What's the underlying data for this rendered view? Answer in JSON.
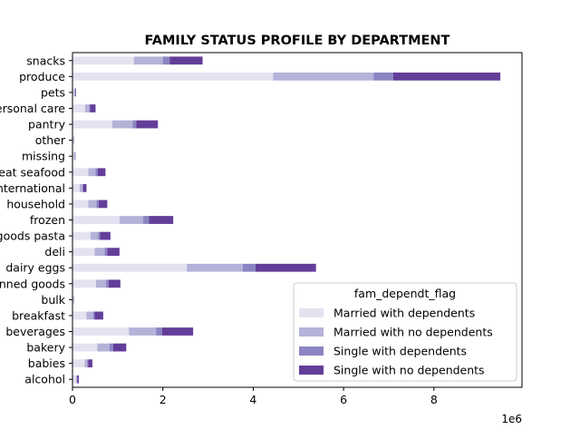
{
  "chart_data": {
    "type": "bar",
    "orientation": "horizontal",
    "stacked": true,
    "title": "FAMILY STATUS PROFILE BY DEPARTMENT",
    "xlabel": "",
    "ylabel": "",
    "x_offset_label": "1e6",
    "xlim": [
      0,
      9950000
    ],
    "x_ticks": [
      0,
      2000000,
      4000000,
      6000000,
      8000000
    ],
    "x_tick_labels": [
      "0",
      "2",
      "4",
      "6",
      "8"
    ],
    "grid": false,
    "legend": {
      "title": "fam_dependt_flag",
      "placement": "lower-right"
    },
    "categories": [
      "alcohol",
      "babies",
      "bakery",
      "beverages",
      "breakfast",
      "bulk",
      "canned goods",
      "dairy eggs",
      "deli",
      "dry goods pasta",
      "frozen",
      "household",
      "international",
      "meat seafood",
      "missing",
      "other",
      "pantry",
      "personal care",
      "pets",
      "produce",
      "snacks"
    ],
    "category_labels": [
      "alcohol",
      "babies",
      "bakery",
      "beverages",
      "breakfast",
      "bulk",
      "canned goods",
      "dairy eggs",
      "deli",
      "dry goods pasta",
      "frozen",
      "household",
      "international",
      "meat seafood",
      "missing",
      "other",
      "pantry",
      "personal care",
      "pets",
      "produce",
      "snacks"
    ],
    "series": [
      {
        "name": "Married with dependents",
        "color": "#e4e2f0",
        "values": [
          80000,
          270000,
          550000,
          1250000,
          310000,
          20000,
          520000,
          2530000,
          490000,
          400000,
          1040000,
          350000,
          160000,
          350000,
          40000,
          20000,
          880000,
          280000,
          40000,
          4440000,
          1360000
        ]
      },
      {
        "name": "Married with no dependents",
        "color": "#b4b2d8",
        "values": [
          20000,
          60000,
          270000,
          600000,
          150000,
          5000,
          220000,
          1240000,
          220000,
          170000,
          520000,
          180000,
          60000,
          160000,
          10000,
          5000,
          450000,
          90000,
          10000,
          2230000,
          640000
        ]
      },
      {
        "name": "Single with dependents",
        "color": "#8a84c2",
        "values": [
          10000,
          20000,
          80000,
          130000,
          30000,
          2000,
          60000,
          280000,
          60000,
          40000,
          130000,
          50000,
          20000,
          50000,
          5000,
          2000,
          80000,
          20000,
          5000,
          430000,
          150000
        ]
      },
      {
        "name": "Single with no dependents",
        "color": "#633e99",
        "values": [
          30000,
          90000,
          290000,
          690000,
          190000,
          5000,
          260000,
          1340000,
          270000,
          230000,
          540000,
          190000,
          70000,
          170000,
          10000,
          5000,
          480000,
          120000,
          20000,
          2370000,
          730000
        ]
      }
    ]
  }
}
